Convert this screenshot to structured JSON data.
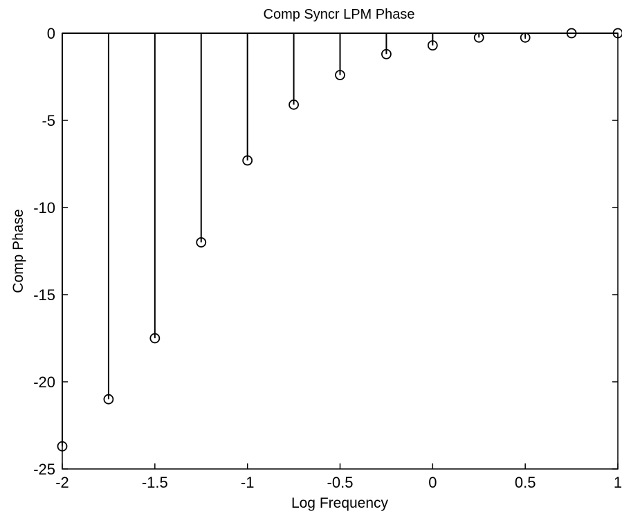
{
  "chart_data": {
    "type": "stem",
    "title": "Comp Syncr LPM Phase",
    "xlabel": "Log Frequency",
    "ylabel": "Comp Phase",
    "xlim": [
      -2,
      1
    ],
    "ylim": [
      -25,
      0
    ],
    "xticks": [
      -2,
      -1.5,
      -1,
      -0.5,
      0,
      0.5,
      1
    ],
    "yticks": [
      0,
      -5,
      -10,
      -15,
      -20,
      -25
    ],
    "grid": false,
    "marker": "circle",
    "color": "#000000",
    "x": [
      -2,
      -1.75,
      -1.5,
      -1.25,
      -1,
      -0.75,
      -0.5,
      -0.25,
      0,
      0.25,
      0.5,
      0.75,
      1
    ],
    "y": [
      -23.7,
      -21.0,
      -17.5,
      -12.0,
      -7.3,
      -4.1,
      -2.4,
      -1.2,
      -0.7,
      -0.25,
      -0.25,
      0.0,
      0.0
    ]
  }
}
